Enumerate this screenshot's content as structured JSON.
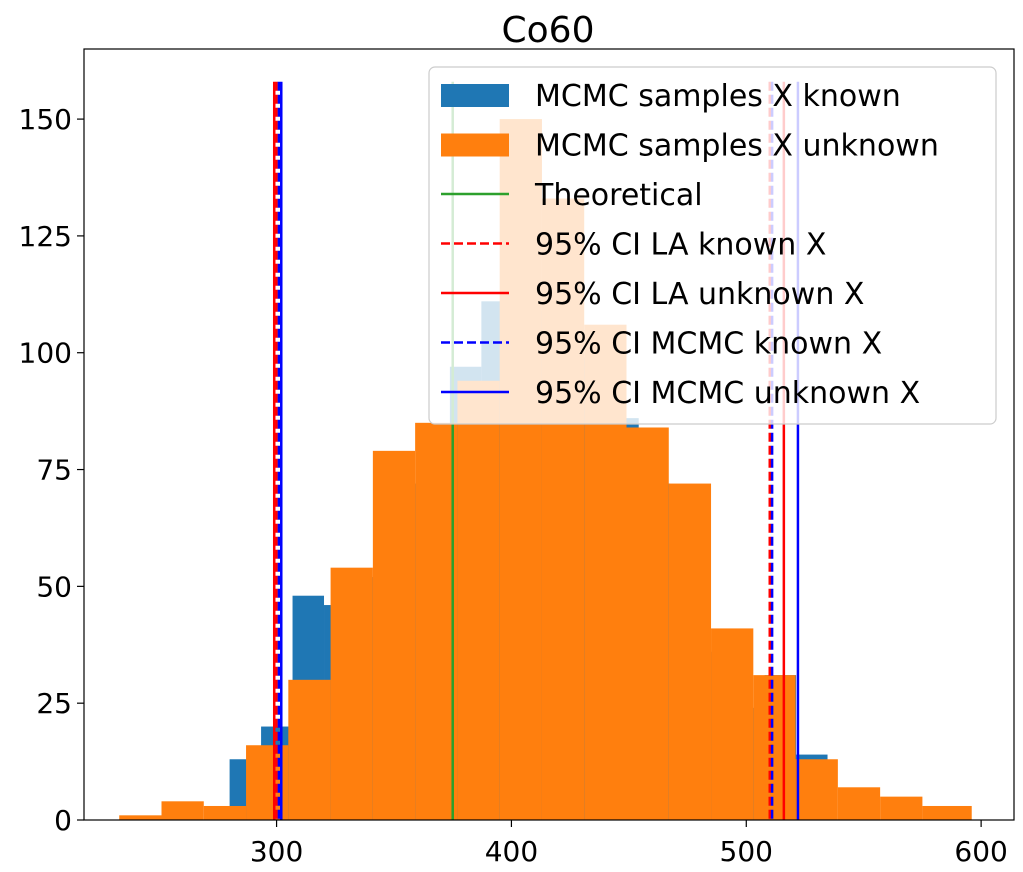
{
  "chart_data": {
    "type": "histogram",
    "title": "Co60",
    "xlabel": "",
    "ylabel": "",
    "xlim": [
      218,
      614
    ],
    "ylim": [
      0,
      165
    ],
    "x_ticks": [
      300,
      400,
      500,
      600
    ],
    "y_ticks": [
      0,
      25,
      50,
      75,
      100,
      125,
      150
    ],
    "grid": false,
    "legend_position": "top-right",
    "histograms": [
      {
        "name": "MCMC samples X known",
        "color": "#1f77b4",
        "bin_edges": [
          280,
          293.4,
          306.8,
          320.2,
          333.6,
          347.0,
          360.4,
          373.8,
          387.2,
          400.6,
          414.0,
          427.4,
          440.8,
          454.2,
          467.6,
          481.0,
          494.4,
          507.8,
          521.2,
          534.6
        ],
        "counts": [
          13,
          20,
          48,
          46,
          52,
          72,
          84,
          97,
          111,
          109,
          105,
          99,
          86,
          72,
          55,
          36,
          24,
          31,
          14
        ]
      },
      {
        "name": "MCMC samples X unknown",
        "color": "#ff7f0e",
        "bin_edges": [
          233,
          251,
          269,
          287,
          305,
          323,
          341,
          359,
          377,
          395,
          413,
          431,
          449,
          467,
          485,
          503,
          521,
          539,
          557,
          575,
          596
        ],
        "counts": [
          1,
          4,
          3,
          16,
          30,
          54,
          79,
          85,
          94,
          150,
          133,
          106,
          84,
          72,
          41,
          31,
          13,
          7,
          5,
          3
        ]
      }
    ],
    "vlines": [
      {
        "name": "Theoretical",
        "x": 375,
        "color": "#2ca02c",
        "dash": false
      },
      {
        "name": "95% CI LA known X",
        "x": [
          300,
          510
        ],
        "color": "#ff0000",
        "dash": true
      },
      {
        "name": "95% CI LA unknown X",
        "x": [
          299,
          516
        ],
        "color": "#ff0000",
        "dash": false
      },
      {
        "name": "95% CI MCMC known X",
        "x": [
          301,
          511
        ],
        "color": "#0000ff",
        "dash": true
      },
      {
        "name": "95% CI MCMC unknown X",
        "x": [
          302,
          522
        ],
        "color": "#0000ff",
        "dash": false
      }
    ],
    "vline_top": 158
  }
}
